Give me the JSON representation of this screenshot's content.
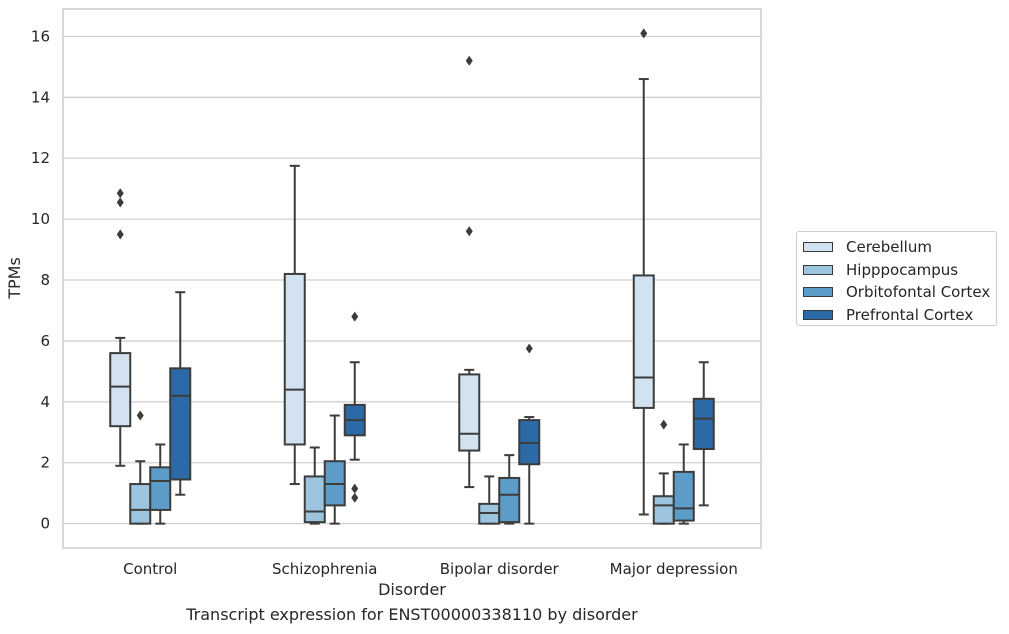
{
  "chart_data": {
    "type": "box",
    "title": "",
    "xlabel": "Disorder",
    "ylabel": "TPMs",
    "caption": "Transcript expression for ENST00000338110 by disorder",
    "ylim": [
      -0.8,
      16.9
    ],
    "yticks": [
      0,
      2,
      4,
      6,
      8,
      10,
      12,
      14,
      16
    ],
    "grid": "horizontal",
    "legend_position": "right",
    "categories": [
      "Control",
      "Schizophrenia",
      "Bipolar disorder",
      "Major depression"
    ],
    "series": [
      {
        "name": "Cerebellum",
        "color": "#d3e2f1",
        "boxes": [
          {
            "whislo": 1.9,
            "q1": 3.2,
            "med": 4.5,
            "q3": 5.6,
            "whishi": 6.1,
            "fliers": [
              9.5,
              10.55,
              10.85
            ]
          },
          {
            "whislo": 1.3,
            "q1": 2.6,
            "med": 4.4,
            "q3": 8.2,
            "whishi": 11.75,
            "fliers": []
          },
          {
            "whislo": 1.2,
            "q1": 2.4,
            "med": 2.95,
            "q3": 4.9,
            "whishi": 5.05,
            "fliers": [
              9.6,
              15.2
            ]
          },
          {
            "whislo": 0.3,
            "q1": 3.8,
            "med": 4.8,
            "q3": 8.15,
            "whishi": 14.6,
            "fliers": [
              16.1
            ]
          }
        ]
      },
      {
        "name": "Hipppocampus",
        "color": "#9dc4de",
        "boxes": [
          {
            "whislo": 0.0,
            "q1": 0.0,
            "med": 0.45,
            "q3": 1.3,
            "whishi": 2.05,
            "fliers": [
              3.55
            ]
          },
          {
            "whislo": 0.0,
            "q1": 0.05,
            "med": 0.4,
            "q3": 1.55,
            "whishi": 2.5,
            "fliers": []
          },
          {
            "whislo": 0.0,
            "q1": 0.0,
            "med": 0.35,
            "q3": 0.65,
            "whishi": 1.55,
            "fliers": []
          },
          {
            "whislo": 0.0,
            "q1": 0.0,
            "med": 0.6,
            "q3": 0.9,
            "whishi": 1.65,
            "fliers": [
              3.25
            ]
          }
        ]
      },
      {
        "name": "Orbitofontal Cortex",
        "color": "#5b9cc8",
        "boxes": [
          {
            "whislo": 0.0,
            "q1": 0.45,
            "med": 1.4,
            "q3": 1.85,
            "whishi": 2.6,
            "fliers": []
          },
          {
            "whislo": 0.0,
            "q1": 0.6,
            "med": 1.3,
            "q3": 2.05,
            "whishi": 3.55,
            "fliers": []
          },
          {
            "whislo": 0.0,
            "q1": 0.05,
            "med": 0.95,
            "q3": 1.5,
            "whishi": 2.25,
            "fliers": []
          },
          {
            "whislo": 0.0,
            "q1": 0.1,
            "med": 0.5,
            "q3": 1.7,
            "whishi": 2.6,
            "fliers": []
          }
        ]
      },
      {
        "name": "Prefrontal Cortex",
        "color": "#2b6aa6",
        "boxes": [
          {
            "whislo": 0.95,
            "q1": 1.45,
            "med": 4.2,
            "q3": 5.1,
            "whishi": 7.6,
            "fliers": []
          },
          {
            "whislo": 2.1,
            "q1": 2.9,
            "med": 3.4,
            "q3": 3.9,
            "whishi": 5.3,
            "fliers": [
              0.85,
              1.15,
              6.8
            ]
          },
          {
            "whislo": 0.0,
            "q1": 1.95,
            "med": 2.65,
            "q3": 3.4,
            "whishi": 3.5,
            "fliers": [
              5.75
            ]
          },
          {
            "whislo": 0.6,
            "q1": 2.45,
            "med": 3.45,
            "q3": 4.1,
            "whishi": 5.3,
            "fliers": []
          }
        ]
      }
    ]
  }
}
